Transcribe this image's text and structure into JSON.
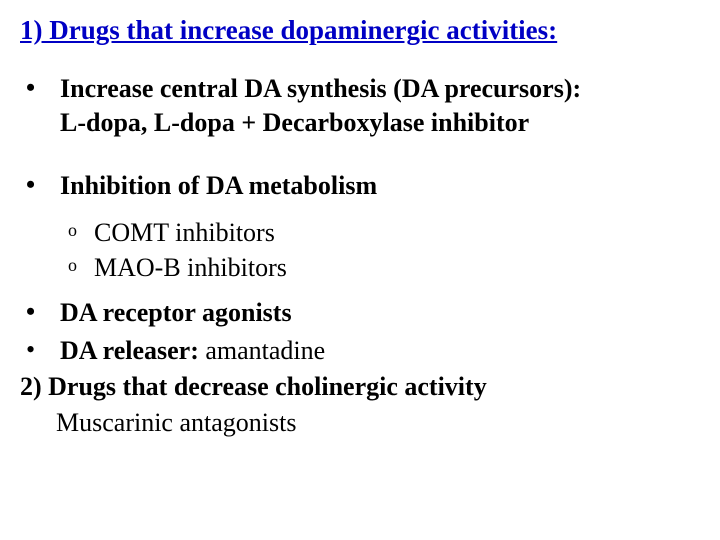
{
  "colors": {
    "title_color": "#0000c4",
    "text_color": "#000000",
    "background": "#ffffff"
  },
  "typography": {
    "family": "Times New Roman",
    "title_fontsize_pt": 20,
    "body_fontsize_pt": 20,
    "sub_marker_fontsize_pt": 13
  },
  "title": "1) Drugs that increase dopaminergic activities:",
  "bullets": {
    "b1_line1": "Increase central DA synthesis (DA precursors):",
    "b1_line2": "L-dopa, L-dopa + Decarboxylase inhibitor",
    "b2": "Inhibition of DA metabolism",
    "b2_sub": {
      "s1": "COMT inhibitors",
      "s2": "MAO-B inhibitors"
    },
    "b3": "DA receptor agonists",
    "b4_bold": "DA releaser:",
    "b4_rest": " amantadine"
  },
  "section2": "2) Drugs that decrease cholinergic activity",
  "section2_line": "Muscarinic antagonists",
  "markers": {
    "bullet": "•",
    "circle": "o"
  }
}
